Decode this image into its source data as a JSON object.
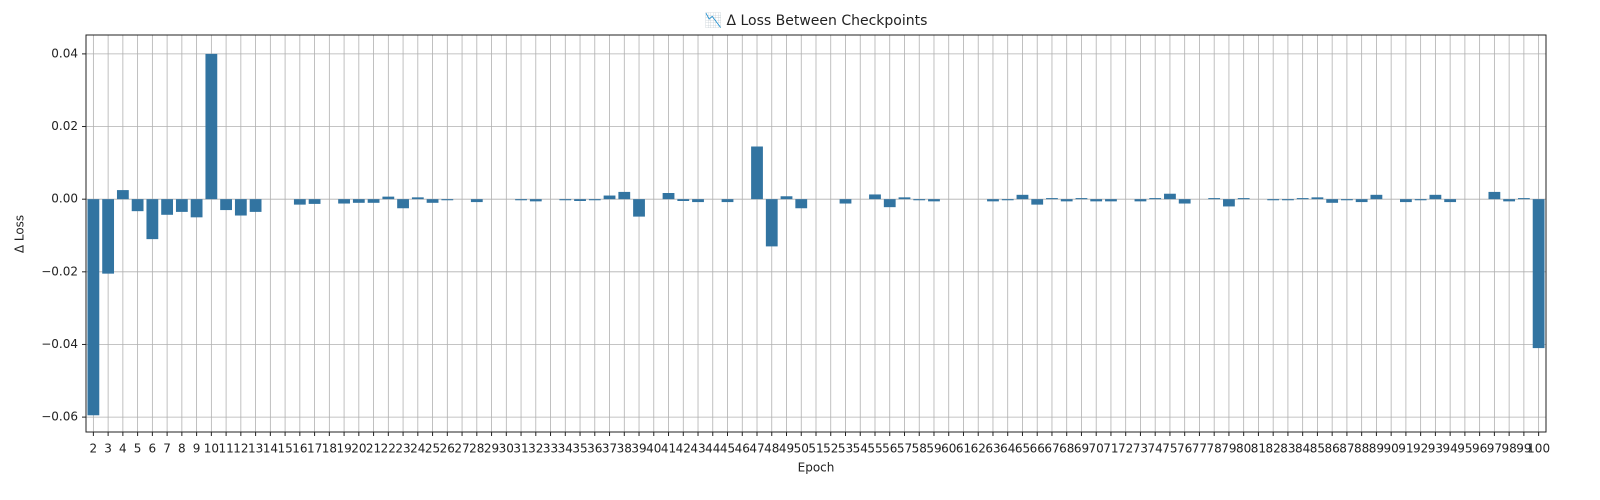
{
  "chart_data": {
    "type": "bar",
    "title": "📉 Δ Loss Between Checkpoints",
    "x_label": "Epoch",
    "y_label": "Δ Loss",
    "categories": [
      "2",
      "3",
      "4",
      "5",
      "6",
      "7",
      "8",
      "9",
      "10",
      "11",
      "12",
      "13",
      "14",
      "15",
      "16",
      "17",
      "18",
      "19",
      "20",
      "21",
      "22",
      "23",
      "24",
      "25",
      "26",
      "27",
      "28",
      "29",
      "30",
      "31",
      "32",
      "33",
      "34",
      "35",
      "36",
      "37",
      "38",
      "39",
      "40",
      "41",
      "42",
      "43",
      "44",
      "45",
      "46",
      "47",
      "48",
      "49",
      "50",
      "51",
      "52",
      "53",
      "54",
      "55",
      "56",
      "57",
      "58",
      "59",
      "60",
      "61",
      "62",
      "63",
      "64",
      "65",
      "66",
      "67",
      "68",
      "69",
      "70",
      "71",
      "72",
      "73",
      "74",
      "75",
      "76",
      "77",
      "78",
      "79",
      "80",
      "81",
      "82",
      "83",
      "84",
      "85",
      "86",
      "87",
      "88",
      "89",
      "90",
      "91",
      "92",
      "93",
      "94",
      "95",
      "96",
      "97",
      "98",
      "99",
      "100"
    ],
    "values": [
      -0.0595,
      -0.0205,
      0.0025,
      -0.0033,
      -0.011,
      -0.0043,
      -0.0035,
      -0.005,
      0.04,
      -0.003,
      -0.0045,
      -0.0035,
      0,
      0,
      -0.0015,
      -0.0013,
      0,
      -0.0012,
      -0.001,
      -0.001,
      0.0007,
      -0.0025,
      0.0005,
      -0.001,
      -0.0003,
      0,
      -0.0008,
      0,
      0,
      -0.0003,
      -0.0006,
      0,
      -0.0003,
      -0.0005,
      -0.0003,
      0.001,
      0.002,
      -0.0048,
      0,
      0.0017,
      -0.0005,
      -0.0008,
      0,
      -0.0008,
      0,
      0.0145,
      -0.013,
      0.0008,
      -0.0025,
      0,
      0,
      -0.0012,
      0,
      0.0013,
      -0.0022,
      0.0005,
      -0.0003,
      -0.0006,
      0,
      0,
      0,
      -0.0006,
      -0.0003,
      0.0012,
      -0.0015,
      0.0003,
      -0.0006,
      0.0003,
      -0.0006,
      -0.0006,
      0,
      -0.0006,
      0.0003,
      0.0015,
      -0.0012,
      0,
      0.0003,
      -0.002,
      0.0003,
      0,
      -0.0003,
      -0.0003,
      0.0003,
      0.0005,
      -0.001,
      -0.0003,
      -0.0008,
      0.0012,
      0,
      -0.0008,
      -0.0003,
      0.0012,
      -0.0008,
      0,
      0,
      0.002,
      -0.0006,
      0.0003,
      -0.041
    ],
    "color": "#3274a1",
    "ylim": [
      -0.0641,
      0.0452
    ],
    "yticks": [
      {
        "value": -0.06,
        "label": "−0.06"
      },
      {
        "value": -0.04,
        "label": "−0.04"
      },
      {
        "value": -0.02,
        "label": "−0.02"
      },
      {
        "value": 0,
        "label": "0.00"
      },
      0.02,
      0.04
    ],
    "grid": true
  }
}
